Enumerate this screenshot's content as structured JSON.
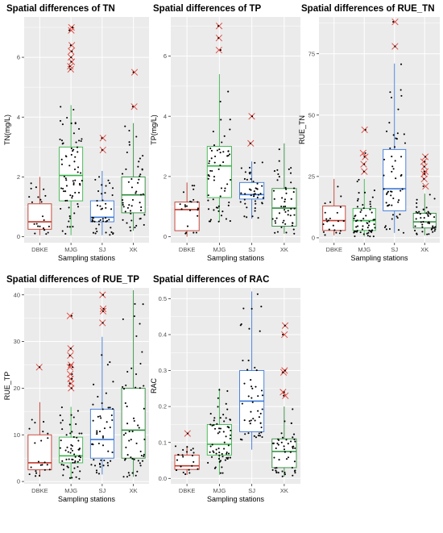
{
  "colors": {
    "panel_bg": "#ebebeb",
    "grid": "#ffffff",
    "DBKE": "#c0392b",
    "MJG": "#39b54a",
    "SJ": "#3b78d8",
    "XK": "#2e8b3a",
    "outlier": "#e0433a",
    "points": "#000000"
  },
  "chart_data": [
    {
      "type": "boxplot",
      "title": "Spatial differences of TN",
      "xlabel": "Sampling stations",
      "ylabel": "TN(mg/L)",
      "ylim": [
        -0.2,
        7.35
      ],
      "yticks": [
        0,
        2,
        4,
        6
      ],
      "ytick_labels": [
        "0",
        "2",
        "4",
        "6"
      ],
      "categories": [
        "DBKE",
        "MJG",
        "SJ",
        "XK"
      ],
      "boxes": [
        {
          "name": "DBKE",
          "min": 0.05,
          "q1": 0.25,
          "median": 0.5,
          "q3": 1.1,
          "max": 2.0,
          "outliers": []
        },
        {
          "name": "MJG",
          "min": 0.05,
          "q1": 1.2,
          "median": 2.05,
          "q3": 3.0,
          "max": 4.4,
          "outliers": [
            5.6,
            5.7,
            5.85,
            6.0,
            6.2,
            6.4,
            6.9,
            7.0
          ]
        },
        {
          "name": "SJ",
          "min": 0.05,
          "q1": 0.5,
          "median": 0.65,
          "q3": 1.2,
          "max": 2.2,
          "outliers": [
            2.9,
            3.3
          ]
        },
        {
          "name": "XK",
          "min": 0.2,
          "q1": 0.8,
          "median": 1.4,
          "q3": 2.0,
          "max": 3.8,
          "outliers": [
            4.35,
            5.5
          ]
        }
      ],
      "jitter_counts": [
        22,
        70,
        45,
        50
      ]
    },
    {
      "type": "boxplot",
      "title": "Spatial differences of TP",
      "xlabel": "Sampling stations",
      "ylabel": "TP(mg/L)",
      "ylim": [
        -0.2,
        7.3
      ],
      "yticks": [
        0,
        2,
        4,
        6
      ],
      "ytick_labels": [
        "0",
        "2",
        "4",
        "6"
      ],
      "categories": [
        "DBKE",
        "MJG",
        "SJ",
        "XK"
      ],
      "boxes": [
        {
          "name": "DBKE",
          "min": 0.0,
          "q1": 0.2,
          "median": 0.9,
          "q3": 1.15,
          "max": 1.8,
          "outliers": []
        },
        {
          "name": "MJG",
          "min": 0.5,
          "q1": 1.3,
          "median": 2.35,
          "q3": 3.0,
          "max": 5.4,
          "outliers": [
            6.2,
            6.6,
            7.0
          ]
        },
        {
          "name": "SJ",
          "min": 0.6,
          "q1": 1.25,
          "median": 1.4,
          "q3": 1.8,
          "max": 2.5,
          "outliers": [
            3.1,
            4.0
          ]
        },
        {
          "name": "XK",
          "min": 0.1,
          "q1": 0.35,
          "median": 0.95,
          "q3": 1.6,
          "max": 3.1,
          "outliers": []
        }
      ],
      "jitter_counts": [
        22,
        60,
        45,
        50
      ]
    },
    {
      "type": "boxplot",
      "title": "Spatial differences of RUE_TN",
      "xlabel": "Sampling stations",
      "ylabel": "RUE_TN",
      "ylim": [
        -2,
        90
      ],
      "yticks": [
        0,
        25,
        50,
        75
      ],
      "ytick_labels": [
        "0",
        "25",
        "50",
        "75"
      ],
      "categories": [
        "DBKE",
        "MJG",
        "SJ",
        "XK"
      ],
      "boxes": [
        {
          "name": "DBKE",
          "min": 1.0,
          "q1": 3.0,
          "median": 7.0,
          "q3": 13.0,
          "max": 24.0,
          "outliers": []
        },
        {
          "name": "MJG",
          "min": 0.5,
          "q1": 3.0,
          "median": 7.0,
          "q3": 12.0,
          "max": 24.0,
          "outliers": [
            27,
            30,
            33,
            34.5,
            44
          ]
        },
        {
          "name": "SJ",
          "min": 2.0,
          "q1": 11.0,
          "median": 20.0,
          "q3": 36.0,
          "max": 71.0,
          "outliers": [
            78,
            88
          ]
        },
        {
          "name": "XK",
          "min": 1.0,
          "q1": 4.0,
          "median": 6.5,
          "q3": 10.0,
          "max": 18.0,
          "outliers": [
            21,
            24,
            26,
            27,
            29,
            31,
            33
          ]
        }
      ],
      "jitter_counts": [
        22,
        60,
        55,
        45
      ]
    },
    {
      "type": "boxplot",
      "title": "Spatial differences of RUE_TP",
      "xlabel": "Sampling stations",
      "ylabel": "RUE_TP",
      "ylim": [
        -0.5,
        41.5
      ],
      "yticks": [
        0,
        10,
        20,
        30,
        40
      ],
      "ytick_labels": [
        "0",
        "10",
        "20",
        "30",
        "40"
      ],
      "categories": [
        "DBKE",
        "MJG",
        "SJ",
        "XK"
      ],
      "boxes": [
        {
          "name": "DBKE",
          "min": 1.0,
          "q1": 2.5,
          "median": 4.0,
          "q3": 10.0,
          "max": 17.0,
          "outliers": [
            24.5
          ]
        },
        {
          "name": "MJG",
          "min": 0.5,
          "q1": 4.0,
          "median": 5.5,
          "q3": 9.5,
          "max": 16.0,
          "outliers": [
            20,
            21,
            22,
            23,
            24.5,
            25,
            27,
            28.5,
            35.5
          ]
        },
        {
          "name": "SJ",
          "min": 1.5,
          "q1": 5.0,
          "median": 9.0,
          "q3": 15.5,
          "max": 31.0,
          "outliers": [
            34,
            36.5,
            37,
            40
          ]
        },
        {
          "name": "XK",
          "min": 1.0,
          "q1": 5.0,
          "median": 11.0,
          "q3": 20.0,
          "max": 41.0,
          "outliers": []
        }
      ],
      "jitter_counts": [
        22,
        60,
        50,
        55
      ]
    },
    {
      "type": "boxplot",
      "title": "Spatial differences of RAC",
      "xlabel": "Sampling stations",
      "ylabel": "RAC",
      "ylim": [
        -0.015,
        0.53
      ],
      "yticks": [
        0.0,
        0.1,
        0.2,
        0.3,
        0.4,
        0.5
      ],
      "ytick_labels": [
        "0.0",
        "0.1",
        "0.2",
        "0.3",
        "0.4",
        "0.5"
      ],
      "categories": [
        "DBKE",
        "MJG",
        "SJ",
        "XK"
      ],
      "boxes": [
        {
          "name": "DBKE",
          "min": 0.01,
          "q1": 0.025,
          "median": 0.035,
          "q3": 0.065,
          "max": 0.09,
          "outliers": [
            0.125
          ]
        },
        {
          "name": "MJG",
          "min": 0.01,
          "q1": 0.065,
          "median": 0.095,
          "q3": 0.15,
          "max": 0.25,
          "outliers": []
        },
        {
          "name": "SJ",
          "min": 0.08,
          "q1": 0.13,
          "median": 0.215,
          "q3": 0.3,
          "max": 0.52,
          "outliers": []
        },
        {
          "name": "XK",
          "min": 0.005,
          "q1": 0.03,
          "median": 0.075,
          "q3": 0.11,
          "max": 0.2,
          "outliers": [
            0.23,
            0.24,
            0.295,
            0.3,
            0.4,
            0.425
          ]
        }
      ],
      "jitter_counts": [
        22,
        65,
        50,
        50
      ]
    }
  ]
}
